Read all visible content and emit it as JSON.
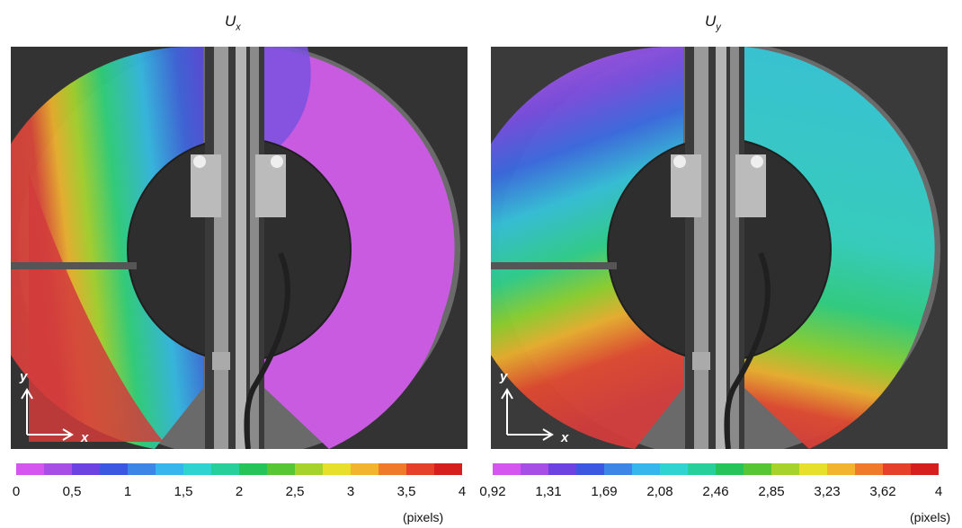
{
  "panels": [
    {
      "title_main": "U",
      "title_sub": "x",
      "axis_y": "y",
      "axis_x": "x",
      "colorbar_ticks": [
        "0",
        "0,5",
        "1",
        "1,5",
        "2",
        "2,5",
        "3",
        "3,5",
        "4"
      ],
      "unit": "(pixels)"
    },
    {
      "title_main": "U",
      "title_sub": "y",
      "axis_y": "y",
      "axis_x": "x",
      "colorbar_ticks": [
        "0,92",
        "1,31",
        "1,69",
        "2,08",
        "2,46",
        "2,85",
        "3,23",
        "3,62",
        "4"
      ],
      "unit": "(pixels)"
    }
  ],
  "colors": {
    "colorbar": [
      "#d455f0",
      "#a64ee6",
      "#6d42e0",
      "#3d58e0",
      "#3b86e6",
      "#36b6ec",
      "#2fd3d0",
      "#27cf9b",
      "#25c35a",
      "#57c634",
      "#a6d22c",
      "#e6e02a",
      "#f2b42c",
      "#ee7a2a",
      "#e6402a",
      "#d61e1e"
    ],
    "magenta_region": "#c85be0",
    "red_region": "#d23c3c",
    "background_photo": "#3c3c3c"
  }
}
